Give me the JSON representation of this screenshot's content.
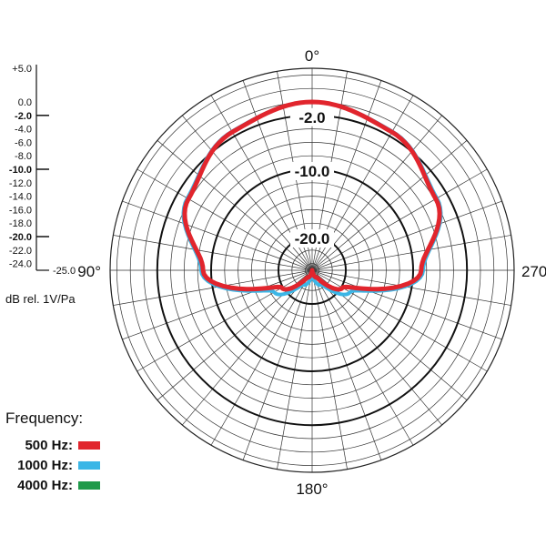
{
  "chart_data": {
    "type": "polar",
    "angle_labels": [
      "0°",
      "90°",
      "180°",
      "270°"
    ],
    "radial_ring_labels": [
      "-2.0",
      "-10.0",
      "-20.0"
    ],
    "scale": {
      "range_db": [
        -25,
        5
      ],
      "labels": [
        "+5.0",
        "0.0",
        "-2.0",
        "-4.0",
        "-6.0",
        "-8.0",
        "-10.0",
        "-12.0",
        "-14.0",
        "-16.0",
        "-18.0",
        "-20.0",
        "-22.0",
        "-24.0",
        "-25.0"
      ],
      "bold_labels": [
        "-2.0",
        "-10.0",
        "-20.0"
      ],
      "unit_label": "dB rel. 1V/Pa"
    },
    "legend_title": "Frequency:",
    "series": [
      {
        "name": "500 Hz:",
        "color": "#e1252d",
        "angles_deg": [
          0,
          30,
          60,
          90,
          120,
          150,
          180
        ],
        "values_db": [
          0,
          -1.3,
          -3.8,
          -8.8,
          -19.8,
          -23.8,
          -25
        ]
      },
      {
        "name": "1000 Hz:",
        "color": "#3bb6e6",
        "angles_deg": [
          0,
          30,
          60,
          90,
          120,
          150,
          180
        ],
        "values_db": [
          0,
          -1.2,
          -3.6,
          -8.5,
          -18.5,
          -22.5,
          -24
        ]
      },
      {
        "name": "4000 Hz:",
        "color": "#1f9a4a",
        "angles_deg": [
          0,
          30,
          60,
          90,
          120,
          150,
          180
        ],
        "values_db": [
          0,
          -1.3,
          -3.8,
          -8.8,
          -19.8,
          -23.8,
          -25
        ]
      }
    ]
  }
}
